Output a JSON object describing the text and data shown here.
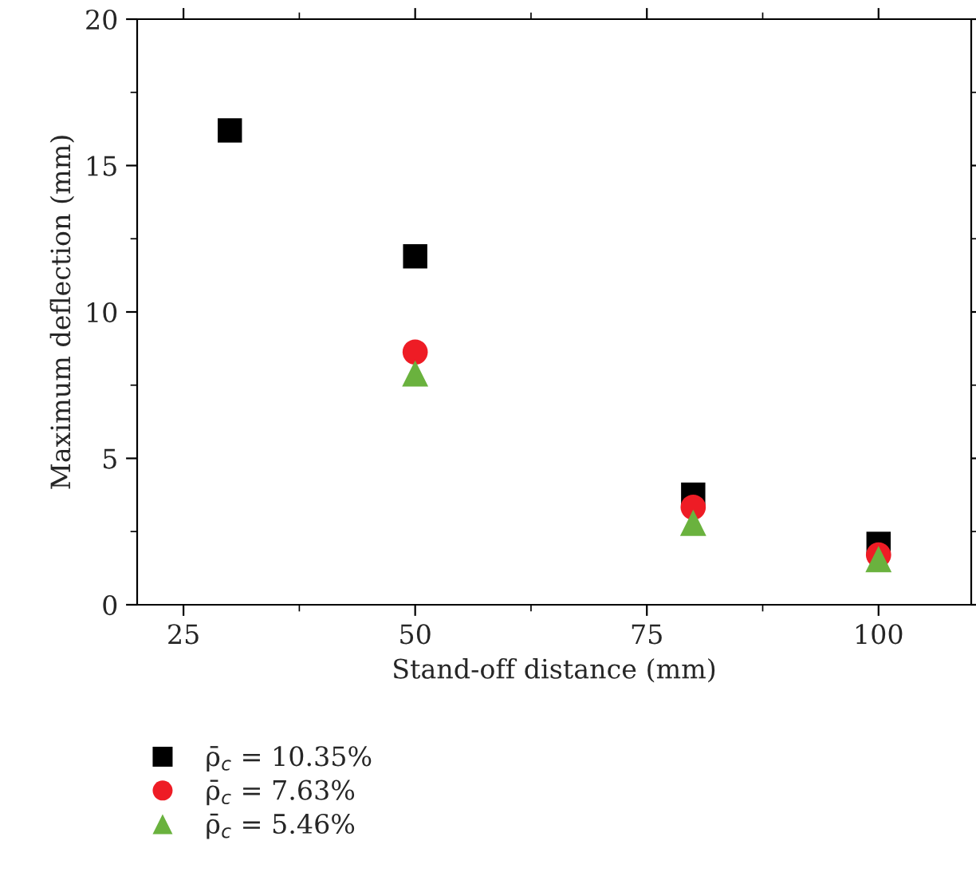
{
  "chart_data": {
    "type": "scatter",
    "xlabel": "Stand-off distance (mm)",
    "ylabel": "Maximum deflection (mm)",
    "xlim": [
      20,
      110
    ],
    "xticks": [
      25,
      50,
      75,
      100
    ],
    "ylim": [
      0,
      20
    ],
    "yticks": [
      0,
      5,
      10,
      15,
      20
    ],
    "grid": false,
    "legend": "bottom left",
    "series": [
      {
        "name": "ρ̄$_{c}$ = 10.35%",
        "color": "#000000",
        "marker": "square",
        "x": [
          30,
          50,
          80,
          100
        ],
        "values": [
          16.2,
          11.9,
          3.76,
          2.08
        ]
      },
      {
        "name": "ρ̄$_{c}$ = 7.63%",
        "color": "#ee1c25",
        "marker": "circle",
        "x": [
          50,
          80,
          100
        ],
        "values": [
          8.63,
          3.33,
          1.7
        ]
      },
      {
        "name": "ρ̄$_{c}$ = 5.46%",
        "color": "#6ab23e",
        "marker": "triangle",
        "x": [
          50,
          80,
          100
        ],
        "values": [
          7.9,
          2.8,
          1.56
        ]
      }
    ]
  }
}
